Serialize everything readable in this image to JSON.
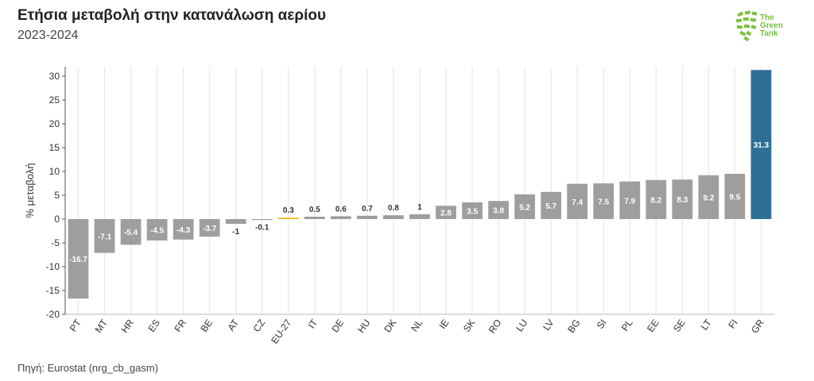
{
  "header": {
    "title": "Ετήσια μεταβολή στην κατανάλωση αερίου",
    "subtitle": "2023-2024"
  },
  "footer": {
    "source": "Πηγή: Eurostat (nrg_cb_gasm)"
  },
  "logo": {
    "lines": [
      "The",
      "Green",
      "Tank"
    ],
    "color": "#7bc043"
  },
  "colors": {
    "default": "#9e9e9e",
    "eu27": "#e8b923",
    "highlight": "#2e6f96"
  },
  "chart_data": {
    "type": "bar",
    "title": "Ετήσια μεταβολή στην κατανάλωση αερίου",
    "subtitle": "2023-2024",
    "ylabel": "% μεταβολή",
    "xlabel": "",
    "ylim": [
      -20,
      32
    ],
    "yticks": [
      -20,
      -15,
      -10,
      -5,
      0,
      5,
      10,
      15,
      20,
      25,
      30
    ],
    "grid": "vertical",
    "categories": [
      "PT",
      "MT",
      "HR",
      "ES",
      "FR",
      "BE",
      "AT",
      "CZ",
      "EU-27",
      "IT",
      "DE",
      "HU",
      "DK",
      "NL",
      "IE",
      "SK",
      "RO",
      "LU",
      "LV",
      "BG",
      "SI",
      "PL",
      "EE",
      "SE",
      "LT",
      "FI",
      "GR"
    ],
    "values": [
      -16.7,
      -7.1,
      -5.4,
      -4.5,
      -4.3,
      -3.7,
      -1,
      -0.1,
      0.3,
      0.5,
      0.6,
      0.7,
      0.8,
      1,
      2.8,
      3.5,
      3.8,
      5.2,
      5.7,
      7.4,
      7.5,
      7.9,
      8.2,
      8.3,
      9.2,
      9.5,
      31.3
    ],
    "labels": [
      "-16.7",
      "-7.1",
      "-5.4",
      "-4.5",
      "-4.3",
      "-3.7",
      "-1",
      "-0.1",
      "0.3",
      "0.5",
      "0.6",
      "0.7",
      "0.8",
      "1",
      "2.8",
      "3.5",
      "3.8",
      "5.2",
      "5.7",
      "7.4",
      "7.5",
      "7.9",
      "8.2",
      "8.3",
      "9.2",
      "9.5",
      "31.3"
    ]
  }
}
